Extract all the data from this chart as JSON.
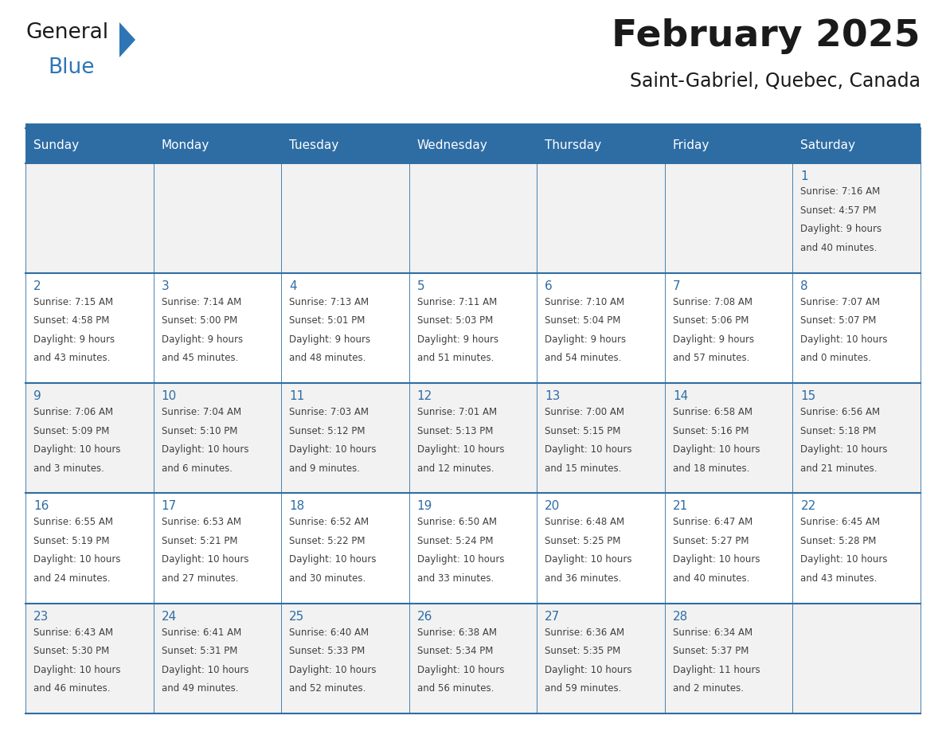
{
  "title": "February 2025",
  "subtitle": "Saint-Gabriel, Quebec, Canada",
  "days_of_week": [
    "Sunday",
    "Monday",
    "Tuesday",
    "Wednesday",
    "Thursday",
    "Friday",
    "Saturday"
  ],
  "header_bg_color": "#2E6DA4",
  "header_text_color": "#FFFFFF",
  "cell_bg_odd": "#F2F2F2",
  "cell_bg_even": "#FFFFFF",
  "grid_line_color": "#2E6DA4",
  "day_number_color": "#2E6DA4",
  "cell_text_color": "#404040",
  "title_color": "#1a1a1a",
  "subtitle_color": "#1a1a1a",
  "logo_general_color": "#1a1a1a",
  "logo_blue_color": "#2E75B6",
  "separator_color": "#2E6DA4",
  "calendar_data": [
    [
      {
        "day": null,
        "lines": []
      },
      {
        "day": null,
        "lines": []
      },
      {
        "day": null,
        "lines": []
      },
      {
        "day": null,
        "lines": []
      },
      {
        "day": null,
        "lines": []
      },
      {
        "day": null,
        "lines": []
      },
      {
        "day": 1,
        "lines": [
          "Sunrise: 7:16 AM",
          "Sunset: 4:57 PM",
          "Daylight: 9 hours",
          "and 40 minutes."
        ]
      }
    ],
    [
      {
        "day": 2,
        "lines": [
          "Sunrise: 7:15 AM",
          "Sunset: 4:58 PM",
          "Daylight: 9 hours",
          "and 43 minutes."
        ]
      },
      {
        "day": 3,
        "lines": [
          "Sunrise: 7:14 AM",
          "Sunset: 5:00 PM",
          "Daylight: 9 hours",
          "and 45 minutes."
        ]
      },
      {
        "day": 4,
        "lines": [
          "Sunrise: 7:13 AM",
          "Sunset: 5:01 PM",
          "Daylight: 9 hours",
          "and 48 minutes."
        ]
      },
      {
        "day": 5,
        "lines": [
          "Sunrise: 7:11 AM",
          "Sunset: 5:03 PM",
          "Daylight: 9 hours",
          "and 51 minutes."
        ]
      },
      {
        "day": 6,
        "lines": [
          "Sunrise: 7:10 AM",
          "Sunset: 5:04 PM",
          "Daylight: 9 hours",
          "and 54 minutes."
        ]
      },
      {
        "day": 7,
        "lines": [
          "Sunrise: 7:08 AM",
          "Sunset: 5:06 PM",
          "Daylight: 9 hours",
          "and 57 minutes."
        ]
      },
      {
        "day": 8,
        "lines": [
          "Sunrise: 7:07 AM",
          "Sunset: 5:07 PM",
          "Daylight: 10 hours",
          "and 0 minutes."
        ]
      }
    ],
    [
      {
        "day": 9,
        "lines": [
          "Sunrise: 7:06 AM",
          "Sunset: 5:09 PM",
          "Daylight: 10 hours",
          "and 3 minutes."
        ]
      },
      {
        "day": 10,
        "lines": [
          "Sunrise: 7:04 AM",
          "Sunset: 5:10 PM",
          "Daylight: 10 hours",
          "and 6 minutes."
        ]
      },
      {
        "day": 11,
        "lines": [
          "Sunrise: 7:03 AM",
          "Sunset: 5:12 PM",
          "Daylight: 10 hours",
          "and 9 minutes."
        ]
      },
      {
        "day": 12,
        "lines": [
          "Sunrise: 7:01 AM",
          "Sunset: 5:13 PM",
          "Daylight: 10 hours",
          "and 12 minutes."
        ]
      },
      {
        "day": 13,
        "lines": [
          "Sunrise: 7:00 AM",
          "Sunset: 5:15 PM",
          "Daylight: 10 hours",
          "and 15 minutes."
        ]
      },
      {
        "day": 14,
        "lines": [
          "Sunrise: 6:58 AM",
          "Sunset: 5:16 PM",
          "Daylight: 10 hours",
          "and 18 minutes."
        ]
      },
      {
        "day": 15,
        "lines": [
          "Sunrise: 6:56 AM",
          "Sunset: 5:18 PM",
          "Daylight: 10 hours",
          "and 21 minutes."
        ]
      }
    ],
    [
      {
        "day": 16,
        "lines": [
          "Sunrise: 6:55 AM",
          "Sunset: 5:19 PM",
          "Daylight: 10 hours",
          "and 24 minutes."
        ]
      },
      {
        "day": 17,
        "lines": [
          "Sunrise: 6:53 AM",
          "Sunset: 5:21 PM",
          "Daylight: 10 hours",
          "and 27 minutes."
        ]
      },
      {
        "day": 18,
        "lines": [
          "Sunrise: 6:52 AM",
          "Sunset: 5:22 PM",
          "Daylight: 10 hours",
          "and 30 minutes."
        ]
      },
      {
        "day": 19,
        "lines": [
          "Sunrise: 6:50 AM",
          "Sunset: 5:24 PM",
          "Daylight: 10 hours",
          "and 33 minutes."
        ]
      },
      {
        "day": 20,
        "lines": [
          "Sunrise: 6:48 AM",
          "Sunset: 5:25 PM",
          "Daylight: 10 hours",
          "and 36 minutes."
        ]
      },
      {
        "day": 21,
        "lines": [
          "Sunrise: 6:47 AM",
          "Sunset: 5:27 PM",
          "Daylight: 10 hours",
          "and 40 minutes."
        ]
      },
      {
        "day": 22,
        "lines": [
          "Sunrise: 6:45 AM",
          "Sunset: 5:28 PM",
          "Daylight: 10 hours",
          "and 43 minutes."
        ]
      }
    ],
    [
      {
        "day": 23,
        "lines": [
          "Sunrise: 6:43 AM",
          "Sunset: 5:30 PM",
          "Daylight: 10 hours",
          "and 46 minutes."
        ]
      },
      {
        "day": 24,
        "lines": [
          "Sunrise: 6:41 AM",
          "Sunset: 5:31 PM",
          "Daylight: 10 hours",
          "and 49 minutes."
        ]
      },
      {
        "day": 25,
        "lines": [
          "Sunrise: 6:40 AM",
          "Sunset: 5:33 PM",
          "Daylight: 10 hours",
          "and 52 minutes."
        ]
      },
      {
        "day": 26,
        "lines": [
          "Sunrise: 6:38 AM",
          "Sunset: 5:34 PM",
          "Daylight: 10 hours",
          "and 56 minutes."
        ]
      },
      {
        "day": 27,
        "lines": [
          "Sunrise: 6:36 AM",
          "Sunset: 5:35 PM",
          "Daylight: 10 hours",
          "and 59 minutes."
        ]
      },
      {
        "day": 28,
        "lines": [
          "Sunrise: 6:34 AM",
          "Sunset: 5:37 PM",
          "Daylight: 11 hours",
          "and 2 minutes."
        ]
      },
      {
        "day": null,
        "lines": []
      }
    ]
  ]
}
